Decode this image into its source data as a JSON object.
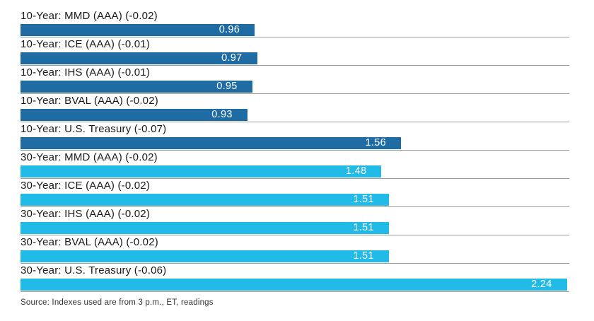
{
  "chart_data": {
    "type": "bar",
    "orientation": "horizontal",
    "title": "",
    "xlabel": "",
    "ylabel": "",
    "xlim": [
      0,
      2.25
    ],
    "grid": false,
    "legend": "none",
    "value_labels_position": "inside-right",
    "value_label_color": "#ffffff",
    "row_baseline_color": "#9a9a9a",
    "group_colors": {
      "10-year": "#1e6ca3",
      "30-year": "#22bbe8"
    },
    "rows": [
      {
        "label": "10-Year: MMD (AAA) (-0.02)",
        "value": 0.96,
        "display": "0.96",
        "group": "10-year"
      },
      {
        "label": "10-Year: ICE (AAA) (-0.01)",
        "value": 0.97,
        "display": "0.97",
        "group": "10-year"
      },
      {
        "label": "10-Year: IHS (AAA) (-0.01)",
        "value": 0.95,
        "display": "0.95",
        "group": "10-year"
      },
      {
        "label": "10-Year: BVAL (AAA) (-0.02)",
        "value": 0.93,
        "display": "0.93",
        "group": "10-year"
      },
      {
        "label": "10-Year: U.S. Treasury (-0.07)",
        "value": 1.56,
        "display": "1.56",
        "group": "10-year"
      },
      {
        "label": "30-Year: MMD (AAA) (-0.02)",
        "value": 1.48,
        "display": "1.48",
        "group": "30-year"
      },
      {
        "label": "30-Year: ICE (AAA) (-0.02)",
        "value": 1.51,
        "display": "1.51",
        "group": "30-year"
      },
      {
        "label": "30-Year: IHS (AAA) (-0.02)",
        "value": 1.51,
        "display": "1.51",
        "group": "30-year"
      },
      {
        "label": "30-Year: BVAL (AAA) (-0.02)",
        "value": 1.51,
        "display": "1.51",
        "group": "30-year"
      },
      {
        "label": "30-Year: U.S. Treasury (-0.06)",
        "value": 2.24,
        "display": "2.24",
        "group": "30-year"
      }
    ]
  },
  "footer": {
    "source": "Source: Indexes used are from 3 p.m., ET, readings"
  }
}
